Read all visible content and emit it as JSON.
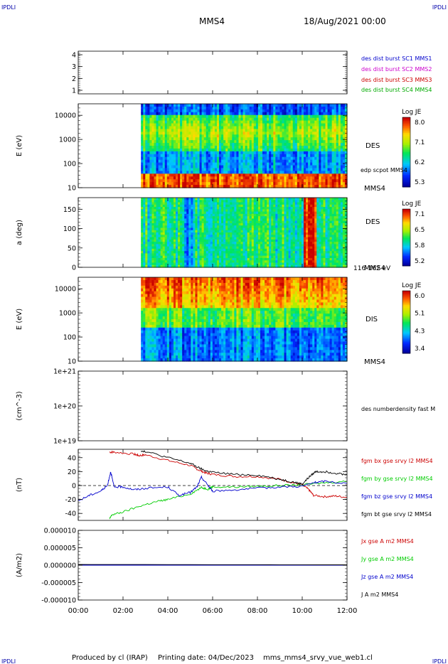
{
  "header": {
    "corner_left_top": "IPDLI",
    "corner_right_top": "IPDLI",
    "corner_left_bottom": "IPDLI",
    "corner_right_bottom": "IPDLI",
    "spacecraft": "MMS4",
    "date": "18/Aug/2021 00:00"
  },
  "footer": {
    "produced": "Produced by cl (IRAP)",
    "printing": "Printing date: 04/Dec/2023",
    "script": "mms_mms4_srvy_vue_web1.cl"
  },
  "colors": {
    "mms1": "#0000cc",
    "mms2": "#cc00cc",
    "mms3": "#cc0000",
    "mms4": "#00aa00",
    "bx": "#cc0000",
    "by": "#00cc00",
    "bz": "#0000cc",
    "bt": "#000000",
    "jx": "#cc0000",
    "jy": "#00cc00",
    "jz": "#0000cc",
    "jt": "#000000"
  },
  "x_axis": {
    "ticks": [
      "00:00",
      "02:00",
      "04:00",
      "06:00",
      "08:00",
      "10:00",
      "12:00"
    ],
    "range_hours": [
      0,
      12
    ]
  },
  "chart_data": [
    {
      "id": "p1",
      "type": "line",
      "yticks": [
        "1",
        "2",
        "3",
        "4"
      ],
      "ylim": [
        0.7,
        4.3
      ],
      "legend": [
        "des dist burst SC1 MMS1",
        "des dist burst SC2 MMS2",
        "des dist burst SC3 MMS3",
        "des dist burst SC4 MMS4"
      ]
    },
    {
      "id": "p2",
      "type": "heatmap",
      "ylabel": "E (eV)",
      "yticks": [
        "10",
        "100",
        "1000",
        "10000"
      ],
      "ylog": true,
      "ylim": [
        10,
        30000
      ],
      "data_start_hour": 2.8,
      "label": "DES",
      "sc": "MMS4",
      "overlay": "edp scpot MMS4",
      "colorbar": {
        "title": "Log JE",
        "ticks": [
          "8.0",
          "7.1",
          "6.2",
          "5.3"
        ]
      }
    },
    {
      "id": "p3",
      "type": "heatmap",
      "ylabel": "a (deg)",
      "yticks": [
        "0",
        "50",
        "100",
        "150"
      ],
      "ylim": [
        0,
        180
      ],
      "data_start_hour": 2.8,
      "label": "DES",
      "sc": "MMS4",
      "energy_band": "116-162 eV",
      "colorbar": {
        "title": "Log JE",
        "ticks": [
          "7.1",
          "6.5",
          "5.8",
          "5.2"
        ]
      }
    },
    {
      "id": "p4",
      "type": "heatmap",
      "ylabel": "E (eV)",
      "yticks": [
        "10",
        "100",
        "1000",
        "10000"
      ],
      "ylog": true,
      "ylim": [
        10,
        30000
      ],
      "data_start_hour": 2.8,
      "label": "DIS",
      "sc": "MMS4",
      "colorbar": {
        "title": "Log JE",
        "ticks": [
          "6.0",
          "5.1",
          "4.3",
          "3.4"
        ]
      }
    },
    {
      "id": "p5",
      "type": "line",
      "ylabel": "(cm^-3)",
      "yticks": [
        "1e+19",
        "1e+20",
        "1e+21"
      ],
      "ylog": true,
      "ylim": [
        1e+19,
        1e+21
      ],
      "legend": [
        "des numberdensity fast M"
      ]
    },
    {
      "id": "p6",
      "type": "line",
      "ylabel": "(nT)",
      "yticks": [
        "-40",
        "-20",
        "0",
        "20",
        "40"
      ],
      "ylim": [
        -50,
        52
      ],
      "series": [
        {
          "name": "fgm bx gse srvy l2 MMS4",
          "color": "#cc0000",
          "x": [
            1.4,
            1.6,
            2.5,
            2.7,
            3.0,
            4.0,
            5.0,
            5.4,
            5.7,
            6.0,
            7.0,
            8.0,
            9.0,
            9.6,
            10.0,
            10.3,
            10.5,
            11.0,
            11.5,
            12.0
          ],
          "y": [
            48,
            48,
            45,
            43,
            44,
            36,
            29,
            22,
            18,
            16,
            13,
            13,
            9,
            4,
            1,
            -6,
            -14,
            -16,
            -15,
            -17
          ]
        },
        {
          "name": "fgm by gse srvy l2 MMS4",
          "color": "#00cc00",
          "x": [
            1.4,
            1.5,
            2.0,
            2.8,
            3.5,
            4.0,
            5.0,
            5.5,
            5.8,
            6.0,
            7.0,
            8.0,
            9.0,
            10.0,
            11.0,
            12.0
          ],
          "y": [
            -48,
            -42,
            -38,
            -29,
            -23,
            -20,
            -12,
            -3,
            -5,
            -2,
            -2,
            -1,
            0,
            1,
            4,
            6
          ]
        },
        {
          "name": "fgm bz gse srvy l2 MMS4",
          "color": "#0000cc",
          "x": [
            0.0,
            0.5,
            1.0,
            1.3,
            1.45,
            1.6,
            2.0,
            2.5,
            3.0,
            4.0,
            4.5,
            5.0,
            5.3,
            5.5,
            5.8,
            6.0,
            7.0,
            8.0,
            9.0,
            10.0,
            10.5,
            11.0,
            12.0
          ],
          "y": [
            -22,
            -14,
            -8,
            0,
            20,
            -2,
            -2,
            -6,
            -4,
            -2,
            -14,
            -10,
            -2,
            12,
            0,
            -8,
            -6,
            -4,
            -2,
            -1,
            4,
            6,
            3
          ]
        },
        {
          "name": "fgm bt gse srvy l2 MMS4",
          "color": "#000000",
          "x": [
            2.8,
            3.0,
            4.0,
            5.0,
            5.4,
            5.7,
            6.0,
            7.0,
            8.0,
            9.0,
            9.6,
            10.0,
            10.3,
            10.6,
            11.0,
            11.5,
            12.0
          ],
          "y": [
            50,
            49,
            40,
            32,
            25,
            21,
            19,
            16,
            15,
            9,
            5,
            2,
            12,
            20,
            20,
            18,
            15
          ]
        }
      ],
      "zero_line": true
    },
    {
      "id": "p7",
      "type": "line",
      "ylabel": "(A/m2)",
      "yticks": [
        "-0.000010",
        "-0.000005",
        "0.000000",
        "0.000005",
        "0.000010"
      ],
      "ylim": [
        -1e-05,
        1e-05
      ],
      "series": [
        {
          "name": "Jx gse A m2 MMS4",
          "color": "#cc0000",
          "x": [
            0,
            12
          ],
          "y": [
            0,
            0
          ]
        },
        {
          "name": "Jy gse A m2 MMS4",
          "color": "#00cc00",
          "x": [
            0,
            12
          ],
          "y": [
            0,
            0
          ]
        },
        {
          "name": "Jz gse A m2 MMS4",
          "color": "#0000cc",
          "x": [
            0,
            12
          ],
          "y": [
            0,
            0
          ]
        },
        {
          "name": "J A m2 MMS4",
          "color": "#000000",
          "x": [
            0,
            12
          ],
          "y": [
            2e-07,
            1e-07
          ]
        }
      ]
    }
  ]
}
